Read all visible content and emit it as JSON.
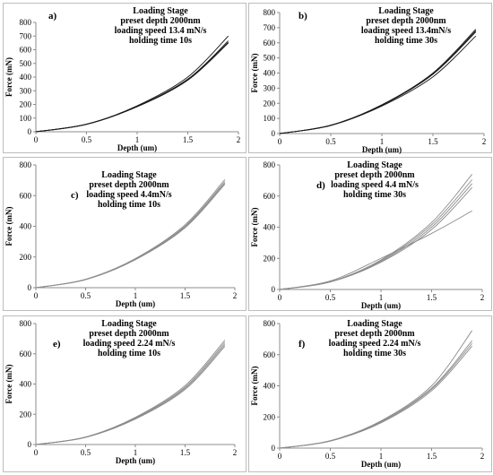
{
  "figure": {
    "panels": [
      {
        "label": "a)",
        "title_lines": [
          "Loading Stage",
          "preset depth 2000nm",
          "loading speed 13.4 mN/s",
          "holding time 10s"
        ],
        "line_color": "#1a1a1a"
      },
      {
        "label": "b)",
        "title_lines": [
          "Loading Stage",
          "preset depth 2000nm",
          "loading speed 13.4mN/s",
          "holding time 30s"
        ],
        "line_color": "#1a1a1a"
      },
      {
        "label": "c)",
        "title_lines": [
          "Loading Stage",
          "preset depth 2000nm",
          "loading speed 4.4mN/s",
          "holding time 10s"
        ],
        "line_color": "#8c8c8c"
      },
      {
        "label": "d)",
        "title_lines": [
          "Loading Stage",
          "preset depth 2000nm",
          "loading speed 4.4 mN/s",
          "holding time 30s"
        ],
        "line_color": "#8c8c8c"
      },
      {
        "label": "e)",
        "title_lines": [
          "Loading Stage",
          "preset depth 2000nm",
          "loading speed 2.24 mN/s",
          "holding time 10s"
        ],
        "line_color": "#8c8c8c"
      },
      {
        "label": "f)",
        "title_lines": [
          "Loading Stage",
          "preset depth 2000nm",
          "loading speed 2.24 mN/s",
          "holding time 30s"
        ],
        "line_color": "#8c8c8c"
      }
    ]
  },
  "chart_data": [
    {
      "type": "line",
      "xlabel": "Depth (um)",
      "ylabel": "Force (mN)",
      "xlim": [
        0,
        2
      ],
      "ylim": [
        0,
        800
      ],
      "xticks": [
        "0",
        "0.5",
        "1",
        "1.5",
        "2"
      ],
      "yticks": [
        "0",
        "100",
        "200",
        "300",
        "400",
        "500",
        "600",
        "700",
        "800"
      ],
      "grid": false,
      "series": [
        {
          "x": [
            0,
            0.5,
            1,
            1.5,
            1.9
          ],
          "y": [
            0,
            55,
            190,
            400,
            700
          ]
        },
        {
          "x": [
            0,
            0.5,
            1,
            1.5,
            1.9
          ],
          "y": [
            0,
            55,
            185,
            385,
            665
          ]
        },
        {
          "x": [
            0,
            0.5,
            1,
            1.5,
            1.9
          ],
          "y": [
            0,
            55,
            185,
            380,
            655
          ]
        },
        {
          "x": [
            0,
            0.5,
            1,
            1.5,
            1.9
          ],
          "y": [
            0,
            54,
            183,
            377,
            650
          ]
        }
      ]
    },
    {
      "type": "line",
      "xlabel": "Depth (um)",
      "ylabel": "Force (mN)",
      "xlim": [
        0,
        2
      ],
      "ylim": [
        0,
        800
      ],
      "xticks": [
        "0",
        "0.5",
        "1",
        "1.5",
        "2"
      ],
      "yticks": [
        "0",
        "100",
        "200",
        "300",
        "400",
        "500",
        "600",
        "700",
        "800"
      ],
      "grid": false,
      "series": [
        {
          "x": [
            0,
            0.5,
            1,
            1.5,
            1.92
          ],
          "y": [
            0,
            55,
            190,
            400,
            690
          ]
        },
        {
          "x": [
            0,
            0.5,
            1,
            1.5,
            1.92
          ],
          "y": [
            0,
            55,
            188,
            395,
            680
          ]
        },
        {
          "x": [
            0,
            0.5,
            1,
            1.5,
            1.92
          ],
          "y": [
            0,
            54,
            187,
            392,
            672
          ]
        },
        {
          "x": [
            0,
            0.5,
            1,
            1.5,
            1.92
          ],
          "y": [
            0,
            53,
            182,
            375,
            645
          ]
        }
      ]
    },
    {
      "type": "line",
      "xlabel": "Depth (um)",
      "ylabel": "Force (mN)",
      "xlim": [
        0,
        2
      ],
      "ylim": [
        0,
        800
      ],
      "xticks": [
        "0",
        "0.5",
        "1",
        "1.5",
        "2"
      ],
      "yticks": [
        "0",
        "200",
        "400",
        "600",
        "800"
      ],
      "grid": false,
      "series": [
        {
          "x": [
            0,
            0.5,
            1,
            1.5,
            1.9
          ],
          "y": [
            0,
            55,
            190,
            410,
            705
          ]
        },
        {
          "x": [
            0,
            0.5,
            1,
            1.5,
            1.9
          ],
          "y": [
            0,
            54,
            187,
            402,
            692
          ]
        },
        {
          "x": [
            0,
            0.5,
            1,
            1.5,
            1.9
          ],
          "y": [
            0,
            53,
            184,
            396,
            682
          ]
        },
        {
          "x": [
            0,
            0.5,
            1,
            1.5,
            1.9
          ],
          "y": [
            0,
            52,
            182,
            390,
            675
          ]
        }
      ]
    },
    {
      "type": "line",
      "xlabel": "Depth (um)",
      "ylabel": "Force (mN)",
      "xlim": [
        0,
        2
      ],
      "ylim": [
        0,
        800
      ],
      "xticks": [
        "0",
        "0.5",
        "1",
        "1.5",
        "2"
      ],
      "yticks": [
        "0",
        "200",
        "400",
        "600",
        "800"
      ],
      "grid": false,
      "series": [
        {
          "x": [
            0,
            0.5,
            1,
            1.5,
            1.9
          ],
          "y": [
            0,
            50,
            190,
            430,
            740
          ]
        },
        {
          "x": [
            0,
            0.5,
            1,
            1.5,
            1.9
          ],
          "y": [
            0,
            50,
            185,
            415,
            705
          ]
        },
        {
          "x": [
            0,
            0.5,
            1,
            1.5,
            1.9
          ],
          "y": [
            0,
            49,
            180,
            400,
            680
          ]
        },
        {
          "x": [
            0,
            0.5,
            1,
            1.5,
            1.9
          ],
          "y": [
            0,
            48,
            175,
            385,
            655
          ]
        },
        {
          "x": [
            0,
            0.5,
            1,
            1.5,
            1.9
          ],
          "y": [
            0,
            55,
            200,
            360,
            505
          ]
        }
      ]
    },
    {
      "type": "line",
      "xlabel": "Depth (um)",
      "ylabel": "Force (mN)",
      "xlim": [
        0,
        2
      ],
      "ylim": [
        0,
        800
      ],
      "xticks": [
        "0",
        "0.5",
        "1",
        "1.5",
        "2"
      ],
      "yticks": [
        "0",
        "200",
        "400",
        "600",
        "800"
      ],
      "grid": false,
      "series": [
        {
          "x": [
            0,
            0.5,
            1,
            1.5,
            1.9
          ],
          "y": [
            0,
            50,
            180,
            390,
            690
          ]
        },
        {
          "x": [
            0,
            0.5,
            1,
            1.5,
            1.9
          ],
          "y": [
            0,
            49,
            176,
            380,
            675
          ]
        },
        {
          "x": [
            0,
            0.5,
            1,
            1.5,
            1.9
          ],
          "y": [
            0,
            48,
            172,
            372,
            662
          ]
        },
        {
          "x": [
            0,
            0.5,
            1,
            1.5,
            1.9
          ],
          "y": [
            0,
            47,
            168,
            364,
            650
          ]
        }
      ]
    },
    {
      "type": "line",
      "xlabel": "Depth (um)",
      "ylabel": "Force (mN)",
      "xlim": [
        0,
        2
      ],
      "ylim": [
        0,
        800
      ],
      "xticks": [
        "0",
        "0.5",
        "1",
        "1.5",
        "2"
      ],
      "yticks": [
        "0",
        "200",
        "400",
        "600",
        "800"
      ],
      "grid": false,
      "series": [
        {
          "x": [
            0,
            0.5,
            1,
            1.5,
            1.9
          ],
          "y": [
            0,
            48,
            175,
            400,
            755
          ]
        },
        {
          "x": [
            0,
            0.5,
            1,
            1.5,
            1.9
          ],
          "y": [
            0,
            47,
            170,
            385,
            690
          ]
        },
        {
          "x": [
            0,
            0.5,
            1,
            1.5,
            1.9
          ],
          "y": [
            0,
            46,
            166,
            378,
            672
          ]
        },
        {
          "x": [
            0,
            0.5,
            1,
            1.5,
            1.9
          ],
          "y": [
            0,
            45,
            162,
            368,
            655
          ]
        }
      ]
    }
  ]
}
